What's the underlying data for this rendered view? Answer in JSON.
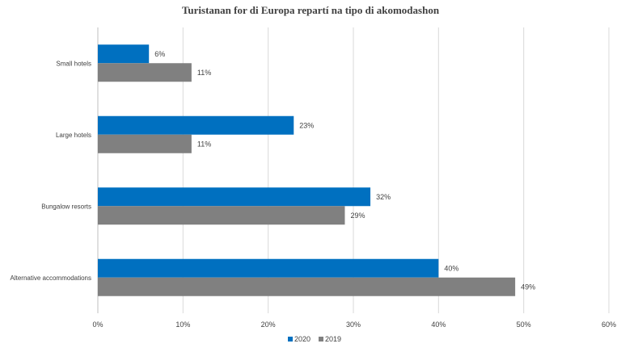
{
  "chart_data": {
    "type": "bar",
    "orientation": "horizontal",
    "title": "Turistanan for di Europa repartí na tipo di akomodashon",
    "categories": [
      "Small hotels",
      "Large hotels",
      "Bungalow resorts",
      "Alternative accommodations"
    ],
    "series": [
      {
        "name": "2020",
        "color": "#0070C0",
        "values": [
          6,
          23,
          32,
          40
        ],
        "labels": [
          "6%",
          "23%",
          "32%",
          "40%"
        ]
      },
      {
        "name": "2019",
        "color": "#808080",
        "values": [
          11,
          11,
          29,
          49
        ],
        "labels": [
          "11%",
          "11%",
          "29%",
          "49%"
        ]
      }
    ],
    "xlim": [
      0,
      60
    ],
    "xticks": [
      0,
      10,
      20,
      30,
      40,
      50,
      60
    ],
    "xtick_labels": [
      "0%",
      "10%",
      "20%",
      "30%",
      "40%",
      "50%",
      "60%"
    ],
    "grid": true,
    "legend_position": "bottom"
  }
}
